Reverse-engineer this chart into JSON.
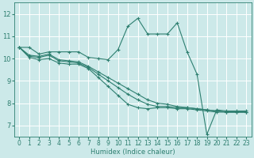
{
  "xlabel": "Humidex (Indice chaleur)",
  "bg_color": "#cce9e9",
  "grid_color": "#ffffff",
  "line_color": "#2e7f70",
  "xlim": [
    -0.5,
    23.5
  ],
  "ylim": [
    6.5,
    12.5
  ],
  "xticks": [
    0,
    1,
    2,
    3,
    4,
    5,
    6,
    7,
    8,
    9,
    10,
    11,
    12,
    13,
    14,
    15,
    16,
    17,
    18,
    19,
    20,
    21,
    22,
    23
  ],
  "yticks": [
    7,
    8,
    9,
    10,
    11,
    12
  ],
  "series": [
    {
      "x": [
        0,
        1,
        2,
        3,
        4,
        5,
        6,
        7,
        8,
        9,
        10,
        11,
        12,
        13,
        14,
        15,
        16,
        17,
        18,
        19,
        20,
        21,
        22,
        23
      ],
      "y": [
        10.5,
        10.5,
        10.2,
        10.3,
        10.3,
        10.3,
        10.3,
        10.05,
        10.0,
        9.95,
        10.4,
        11.45,
        11.8,
        11.1,
        11.1,
        11.1,
        11.6,
        10.3,
        9.3,
        6.6,
        7.7,
        7.65,
        7.65,
        7.65
      ]
    },
    {
      "x": [
        0,
        1,
        2,
        3,
        4,
        5,
        6,
        7,
        8,
        9,
        10,
        11,
        12,
        13,
        14,
        15,
        16,
        17,
        18,
        19,
        20,
        21,
        22,
        23
      ],
      "y": [
        10.5,
        10.15,
        10.1,
        10.2,
        9.95,
        9.9,
        9.85,
        9.65,
        9.4,
        9.15,
        8.9,
        8.65,
        8.4,
        8.15,
        8.0,
        7.95,
        7.85,
        7.8,
        7.75,
        7.7,
        7.65,
        7.6,
        7.6,
        7.6
      ]
    },
    {
      "x": [
        0,
        1,
        2,
        3,
        4,
        5,
        6,
        7,
        8,
        9,
        10,
        11,
        12,
        13,
        14,
        15,
        16,
        17,
        18,
        19,
        20,
        21,
        22,
        23
      ],
      "y": [
        10.5,
        10.1,
        10.05,
        10.15,
        9.9,
        9.85,
        9.8,
        9.6,
        9.3,
        9.0,
        8.7,
        8.4,
        8.15,
        7.95,
        7.85,
        7.85,
        7.8,
        7.8,
        7.75,
        7.7,
        7.65,
        7.6,
        7.6,
        7.6
      ]
    },
    {
      "x": [
        0,
        1,
        2,
        3,
        4,
        5,
        6,
        7,
        8,
        9,
        10,
        11,
        12,
        13,
        14,
        15,
        16,
        17,
        18,
        19,
        20,
        21,
        22,
        23
      ],
      "y": [
        10.5,
        10.05,
        9.95,
        10.0,
        9.8,
        9.75,
        9.75,
        9.55,
        9.15,
        8.75,
        8.35,
        7.95,
        7.8,
        7.75,
        7.8,
        7.8,
        7.75,
        7.75,
        7.7,
        7.65,
        7.6,
        7.6,
        7.6,
        7.6
      ]
    }
  ]
}
